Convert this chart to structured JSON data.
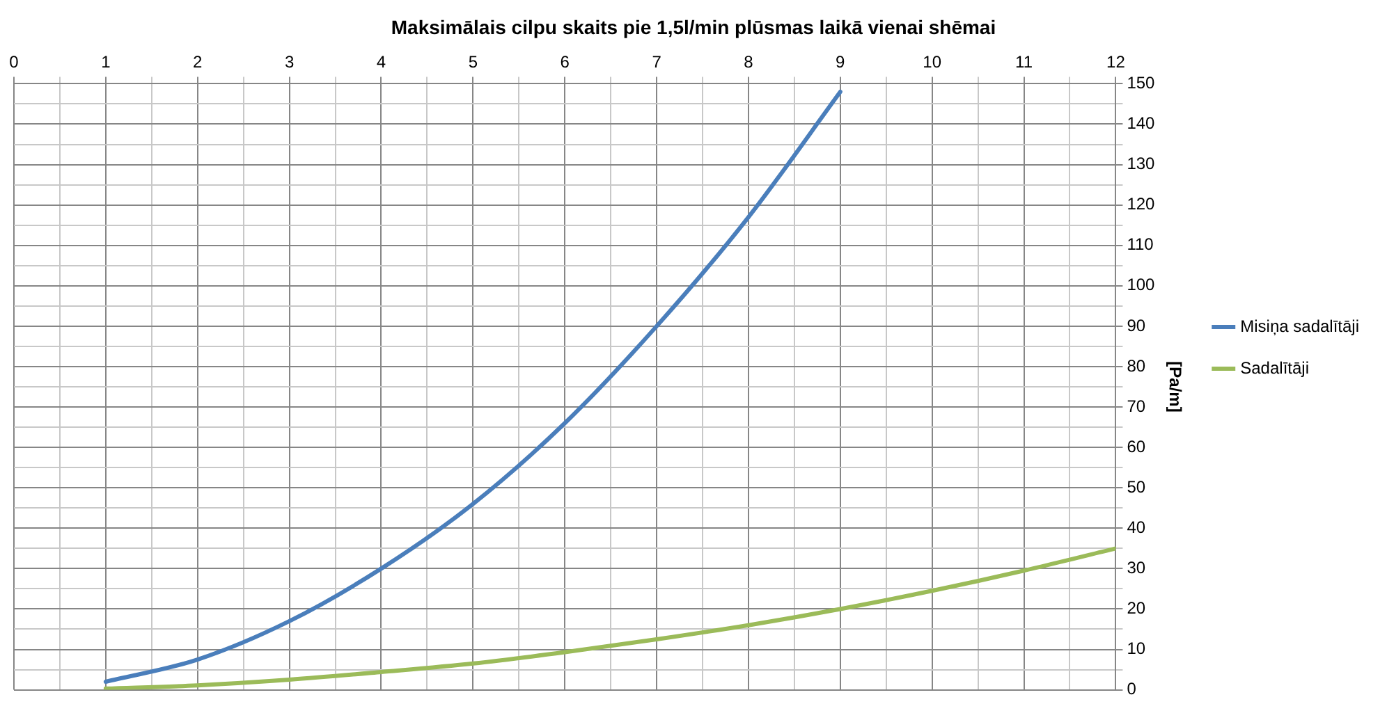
{
  "chart_data": {
    "type": "line",
    "title": "Maksimālais cilpu skaits pie 1,5l/min plūsmas laikā vienai shēmai",
    "ylabel": "[Pa/m]",
    "x": [
      1,
      2,
      3,
      4,
      5,
      6,
      7,
      8,
      9,
      10,
      11,
      12
    ],
    "series": [
      {
        "name": "Misiņa sadalītāji",
        "color": "#4a7ebb",
        "values": [
          2,
          7.5,
          17,
          30,
          46,
          66,
          90,
          117,
          148,
          null,
          null,
          null
        ]
      },
      {
        "name": "Sadalītāji",
        "color": "#9bbb59",
        "values": [
          0.3,
          1.1,
          2.5,
          4.4,
          6.5,
          9.3,
          12.5,
          16,
          20,
          24.5,
          29.5,
          35
        ]
      }
    ],
    "xlim": [
      0,
      12
    ],
    "xticks": [
      0,
      {
        "value": 0.5,
        "label": null
      },
      1,
      {
        "value": 1.5,
        "label": null
      },
      2,
      {
        "value": 2.5,
        "label": null
      },
      3,
      {
        "value": 3.5,
        "label": null
      },
      4,
      {
        "value": 4.5,
        "label": null
      },
      5,
      {
        "value": 5.5,
        "label": null
      },
      6,
      {
        "value": 6.5,
        "label": null
      },
      7,
      {
        "value": 7.5,
        "label": null
      },
      8,
      {
        "value": 8.5,
        "label": null
      },
      9,
      {
        "value": 9.5,
        "label": null
      },
      10,
      {
        "value": 10.5,
        "label": null
      },
      11,
      {
        "value": 11.5,
        "label": null
      },
      12
    ],
    "ylim": [
      0,
      150
    ],
    "yticks": [
      0,
      {
        "value": 5,
        "label": null
      },
      10,
      {
        "value": 15,
        "label": null
      },
      20,
      {
        "value": 25,
        "label": null
      },
      30,
      {
        "value": 35,
        "label": null
      },
      40,
      {
        "value": 45,
        "label": null
      },
      50,
      {
        "value": 55,
        "label": null
      },
      60,
      {
        "value": 65,
        "label": null
      },
      70,
      {
        "value": 75,
        "label": null
      },
      80,
      {
        "value": 85,
        "label": null
      },
      90,
      {
        "value": 95,
        "label": null
      },
      100,
      {
        "value": 105,
        "label": null
      },
      110,
      {
        "value": 115,
        "label": null
      },
      120,
      {
        "value": 125,
        "label": null
      },
      130,
      {
        "value": 135,
        "label": null
      },
      140,
      {
        "value": 145,
        "label": null
      },
      150
    ],
    "grid": true,
    "legend": "right",
    "marker": "none",
    "line_style": "solid"
  }
}
